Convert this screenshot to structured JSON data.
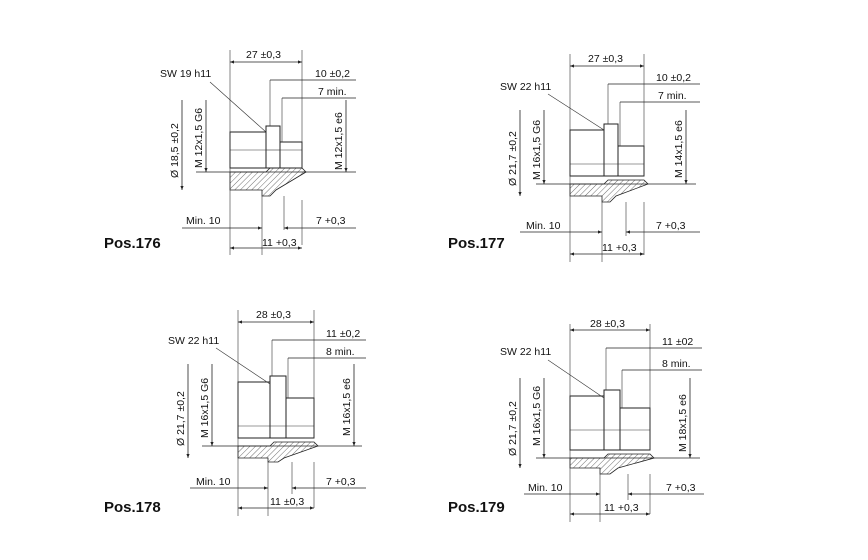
{
  "drawings": [
    {
      "id": "pos176",
      "title": "Pos.176",
      "overall_length": "27 ±0,3",
      "thread_length": "10 ±0,2",
      "min_thread": "7 min.",
      "hex": "SW 19 h11",
      "diameter": "Ø 18,5 ±0,2",
      "inner_thread": "M 12x1,5 G6",
      "outer_thread": "M 12x1,5 e6",
      "min_length": "Min. 10",
      "tail_length": "7 +0,3",
      "body_length": "11 +0,3"
    },
    {
      "id": "pos177",
      "title": "Pos.177",
      "overall_length": "27 ±0,3",
      "thread_length": "10 ±0,2",
      "min_thread": "7 min.",
      "hex": "SW 22 h11",
      "diameter": "Ø 21,7 ±0,2",
      "inner_thread": "M 16x1,5 G6",
      "outer_thread": "M 14x1,5 e6",
      "min_length": "Min. 10",
      "tail_length": "7 +0,3",
      "body_length": "11 +0,3"
    },
    {
      "id": "pos178",
      "title": "Pos.178",
      "overall_length": "28 ±0,3",
      "thread_length": "11 ±0,2",
      "min_thread": "8 min.",
      "hex": "SW 22 h11",
      "diameter": "Ø 21,7 ±0,2",
      "inner_thread": "M 16x1,5 G6",
      "outer_thread": "M 16x1,5 e6",
      "min_length": "Min. 10",
      "tail_length": "7 +0,3",
      "body_length": "11 ±0,3"
    },
    {
      "id": "pos179",
      "title": "Pos.179",
      "overall_length": "28 ±0,3",
      "thread_length": "11 ±02",
      "min_thread": "8 min.",
      "hex": "SW 22 h11",
      "diameter": "Ø 21,7 ±0,2",
      "inner_thread": "M 16x1,5 G6",
      "outer_thread": "M 18x1,5 e6",
      "min_length": "Min. 10",
      "tail_length": "7 +0,3",
      "body_length": "11 +0,3"
    }
  ]
}
